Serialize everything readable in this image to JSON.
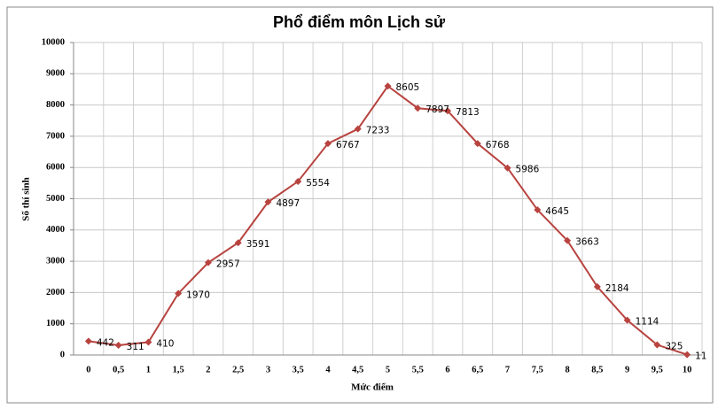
{
  "chart_data": {
    "type": "line",
    "title": "Phổ điểm môn Lịch sử",
    "x_label": "Mức điểm",
    "y_label": "Số thí sinh",
    "categories": [
      "0",
      "0,5",
      "1",
      "1,5",
      "2",
      "2,5",
      "3",
      "3,5",
      "4",
      "4,5",
      "5",
      "5,5",
      "6",
      "6,5",
      "7",
      "7,5",
      "8",
      "8,5",
      "9",
      "9,5",
      "10"
    ],
    "values": [
      442,
      311,
      410,
      1970,
      2957,
      3591,
      4897,
      5554,
      6767,
      7233,
      8605,
      7897,
      7813,
      6768,
      5986,
      4645,
      3663,
      2184,
      1114,
      325,
      11
    ],
    "color": "#b8433f",
    "ylim": [
      0,
      10000
    ],
    "yticks": [
      0,
      1000,
      2000,
      3000,
      4000,
      5000,
      6000,
      7000,
      8000,
      9000,
      10000
    ],
    "grid": true
  }
}
